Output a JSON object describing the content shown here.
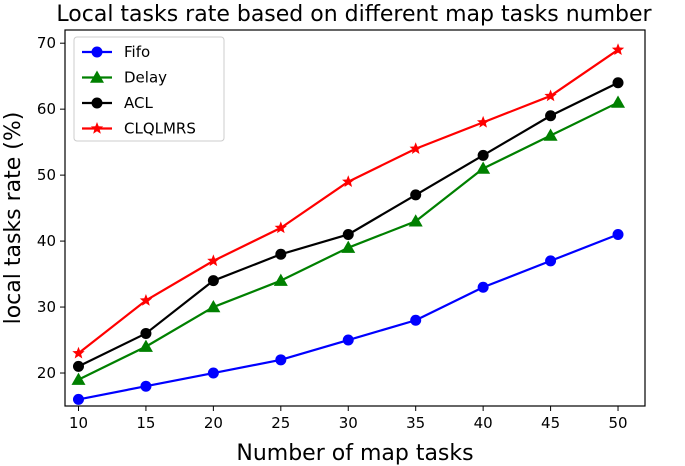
{
  "chart_data": {
    "type": "line",
    "title": "Local tasks rate based on different map tasks number",
    "xlabel": "Number of map tasks",
    "ylabel": "local tasks rate (%)",
    "x": [
      10,
      15,
      20,
      25,
      30,
      35,
      40,
      45,
      50
    ],
    "xlim": [
      9,
      52
    ],
    "ylim": [
      15,
      72
    ],
    "xticks": [
      10,
      15,
      20,
      25,
      30,
      35,
      40,
      45,
      50
    ],
    "yticks": [
      20,
      30,
      40,
      50,
      60,
      70
    ],
    "grid": false,
    "legend_position": "top-left",
    "series": [
      {
        "name": "Fifo",
        "color": "#0000ff",
        "marker": "circle",
        "values": [
          16,
          18,
          20,
          22,
          25,
          28,
          33,
          37,
          41
        ]
      },
      {
        "name": "Delay",
        "color": "#008000",
        "marker": "triangle",
        "values": [
          19,
          24,
          30,
          34,
          39,
          43,
          51,
          56,
          61
        ]
      },
      {
        "name": "ACL",
        "color": "#000000",
        "marker": "circle",
        "values": [
          21,
          26,
          34,
          38,
          41,
          47,
          53,
          59,
          64
        ]
      },
      {
        "name": "CLQLMRS",
        "color": "#ff0000",
        "marker": "star",
        "values": [
          23,
          31,
          37,
          42,
          49,
          54,
          58,
          62,
          69
        ]
      }
    ]
  }
}
